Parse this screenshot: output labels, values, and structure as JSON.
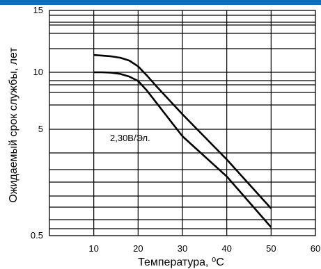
{
  "colors": {
    "top_bar": "#0a6fbf",
    "line": "#000000",
    "background": "#ffffff"
  },
  "chart_data": {
    "type": "line",
    "title": "",
    "xlabel": "Температура, ⁰С",
    "ylabel": "Ожидаемый срок службы, лет",
    "xlim": [
      0,
      60
    ],
    "ylim": [
      0.5,
      15
    ],
    "y_scale": "custom-log (labels 0.5, 5, 10, 15)",
    "x_ticks": [
      "10",
      "20",
      "30",
      "40",
      "50",
      "60"
    ],
    "y_ticks": [
      "0.5",
      "5",
      "10",
      "15"
    ],
    "grid": true,
    "annotation": "2,30В/Эл.",
    "series": [
      {
        "x": [
          10,
          12,
          14,
          16,
          18,
          20,
          22,
          24,
          30,
          40,
          50
        ],
        "y": [
          11.2,
          11.15,
          11.1,
          11.0,
          10.8,
          10.4,
          9.6,
          8.5,
          6.0,
          2.6,
          0.9
        ]
      },
      {
        "x": [
          10,
          12,
          14,
          16,
          18,
          20,
          22,
          30,
          40,
          50
        ],
        "y": [
          10.0,
          10.0,
          9.95,
          9.8,
          9.5,
          9.0,
          8.0,
          4.3,
          1.8,
          0.6
        ]
      }
    ]
  }
}
